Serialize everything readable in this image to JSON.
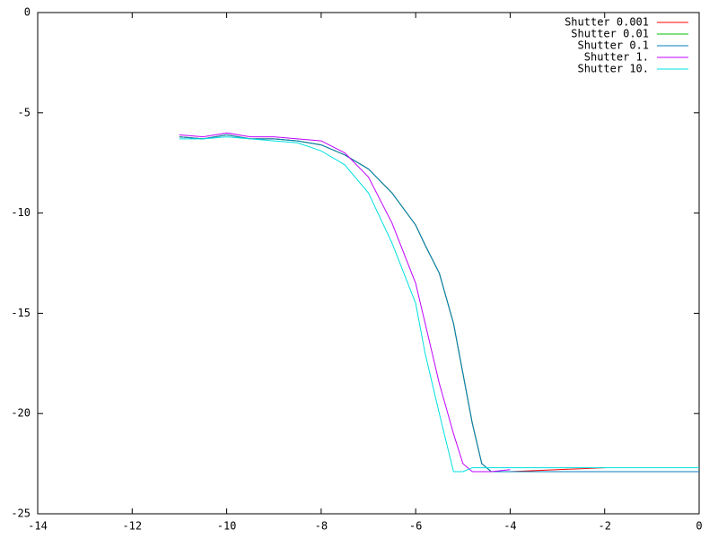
{
  "chart_data": {
    "type": "line",
    "x": [
      -11,
      -10.5,
      -10,
      -9.5,
      -9,
      -8.5,
      -8,
      -7.5,
      -7,
      -6.5,
      -6,
      -5.8,
      -5.5,
      -5.2,
      -5,
      -4.8,
      -4.6,
      -4.4,
      -4,
      -3,
      -2,
      -1,
      0
    ],
    "series": [
      {
        "name": "Shutter 0.001",
        "color": "#ff0000",
        "values": [
          -6.2,
          -6.3,
          -6.1,
          -6.3,
          -6.3,
          -6.4,
          -6.6,
          -7.1,
          -7.8,
          -9.0,
          -10.6,
          -11.6,
          -13.0,
          -15.5,
          -18,
          -20.5,
          -22.5,
          -22.9,
          -22.9,
          -22.8,
          -22.7,
          null,
          null
        ]
      },
      {
        "name": "Shutter 0.01",
        "color": "#00c000",
        "values": [
          -6.2,
          -6.3,
          -6.1,
          -6.3,
          -6.3,
          -6.4,
          -6.6,
          -7.1,
          -7.8,
          -9.0,
          -10.6,
          -11.6,
          -13.0,
          -15.5,
          -18,
          -20.5,
          -22.5,
          -22.9,
          -22.9,
          null,
          null,
          null,
          null
        ]
      },
      {
        "name": "Shutter 0.1",
        "color": "#0080c0",
        "values": [
          -6.2,
          -6.3,
          -6.1,
          -6.3,
          -6.3,
          -6.4,
          -6.6,
          -7.1,
          -7.8,
          -9.0,
          -10.6,
          -11.6,
          -13.0,
          -15.5,
          -18,
          -20.5,
          -22.5,
          -22.9,
          -22.9,
          -22.9,
          -22.9,
          -22.9,
          -22.9
        ]
      },
      {
        "name": "Shutter 1.",
        "color": "#c000ff",
        "values": [
          -6.1,
          -6.2,
          -6.0,
          -6.2,
          -6.2,
          -6.3,
          -6.4,
          -7.0,
          -8.2,
          -10.5,
          -13.5,
          -15.5,
          -18.5,
          -21,
          -22.5,
          -22.9,
          -22.9,
          -22.9,
          -22.8,
          null,
          null,
          null,
          null
        ]
      },
      {
        "name": "Shutter 10.",
        "color": "#00e0e0",
        "values": [
          -6.3,
          -6.3,
          -6.2,
          -6.3,
          -6.4,
          -6.5,
          -6.9,
          -7.6,
          -9,
          -11.5,
          -14.5,
          -17,
          -20,
          -22.9,
          -22.9,
          -22.7,
          -22.7,
          -22.7,
          -22.7,
          -22.7,
          -22.7,
          -22.7,
          -22.7
        ]
      }
    ],
    "xlim": [
      -14,
      0
    ],
    "ylim": [
      -25,
      0
    ],
    "xticks": [
      -14,
      -12,
      -10,
      -8,
      -6,
      -4,
      -2,
      0
    ],
    "yticks": [
      0,
      -5,
      -10,
      -15,
      -20,
      -25
    ],
    "legend": "top-right"
  }
}
